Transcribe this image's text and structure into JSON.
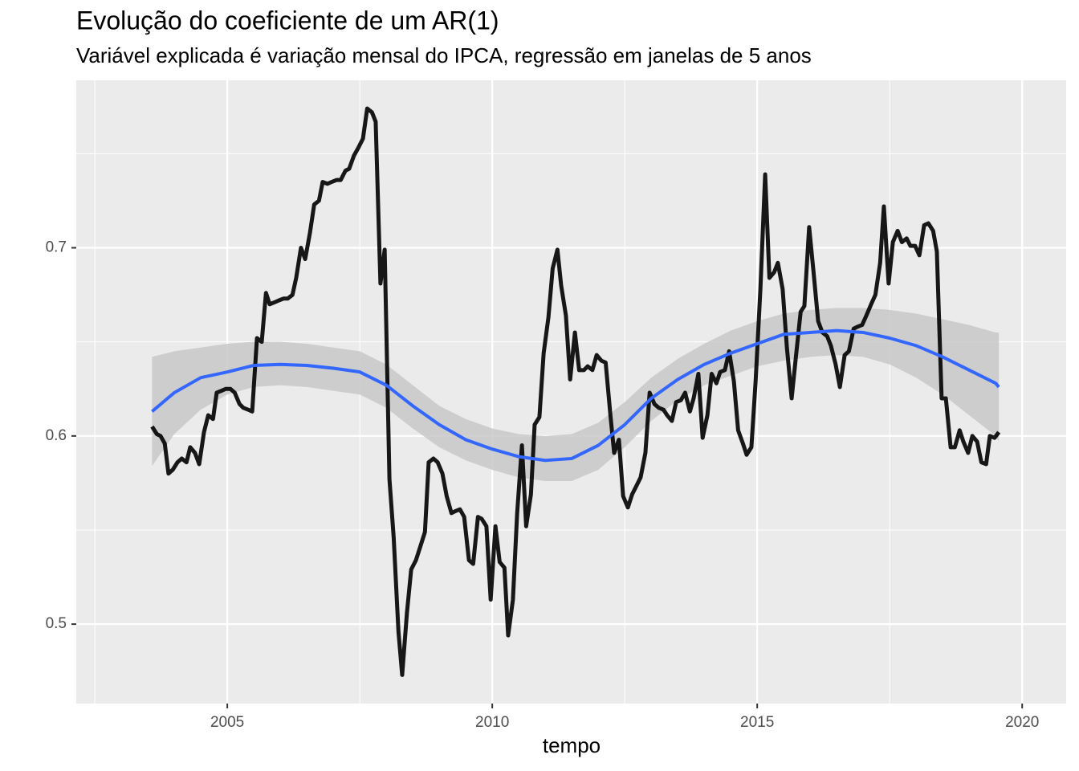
{
  "chart_data": {
    "type": "line",
    "title": "Evolução do coeficiente de um AR(1)",
    "subtitle": "Variável explicada é variação mensal do IPCA, regressão em janelas de 5 anos",
    "x_label": "tempo",
    "xlim": [
      2002.15,
      2020.83
    ],
    "ylim": [
      0.4578,
      0.789
    ],
    "xticks": [
      2005,
      2010,
      2015,
      2020
    ],
    "yticks": [
      0.5,
      0.6,
      0.7
    ],
    "xminor": [
      2002.5,
      2007.5,
      2012.5,
      2017.5
    ],
    "yminor": [
      0.55,
      0.65,
      0.75
    ],
    "grid": true,
    "panel_color": "#ebebeb",
    "series": [
      {
        "color": "#000000",
        "x": [
          2003.58,
          2003.67,
          2003.74,
          2003.82,
          2003.89,
          2003.97,
          2004.06,
          2004.14,
          2004.23,
          2004.3,
          2004.39,
          2004.47,
          2004.56,
          2004.64,
          2004.73,
          2004.8,
          2004.89,
          2004.97,
          2005.06,
          2005.14,
          2005.23,
          2005.3,
          2005.39,
          2005.47,
          2005.56,
          2005.65,
          2005.73,
          2005.8,
          2005.89,
          2005.97,
          2006.06,
          2006.14,
          2006.23,
          2006.3,
          2006.39,
          2006.47,
          2006.56,
          2006.64,
          2006.73,
          2006.8,
          2006.89,
          2006.97,
          2007.06,
          2007.14,
          2007.23,
          2007.3,
          2007.39,
          2007.47,
          2007.56,
          2007.64,
          2007.73,
          2007.8,
          2007.89,
          2007.97,
          2008.06,
          2008.14,
          2008.23,
          2008.3,
          2008.39,
          2008.47,
          2008.56,
          2008.64,
          2008.73,
          2008.8,
          2008.89,
          2008.97,
          2009.06,
          2009.14,
          2009.23,
          2009.3,
          2009.39,
          2009.47,
          2009.56,
          2009.64,
          2009.73,
          2009.8,
          2009.89,
          2009.97,
          2010.06,
          2010.14,
          2010.23,
          2010.3,
          2010.39,
          2010.47,
          2010.56,
          2010.64,
          2010.73,
          2010.8,
          2010.89,
          2010.97,
          2011.06,
          2011.14,
          2011.23,
          2011.3,
          2011.39,
          2011.47,
          2011.56,
          2011.64,
          2011.73,
          2011.8,
          2011.89,
          2011.97,
          2012.06,
          2012.14,
          2012.23,
          2012.3,
          2012.39,
          2012.47,
          2012.56,
          2012.64,
          2012.73,
          2012.8,
          2012.89,
          2012.97,
          2013.06,
          2013.14,
          2013.23,
          2013.3,
          2013.39,
          2013.47,
          2013.56,
          2013.64,
          2013.73,
          2013.8,
          2013.89,
          2013.97,
          2014.06,
          2014.14,
          2014.23,
          2014.3,
          2014.39,
          2014.47,
          2014.56,
          2014.64,
          2014.73,
          2014.8,
          2014.89,
          2014.97,
          2015.06,
          2015.15,
          2015.23,
          2015.32,
          2015.39,
          2015.48,
          2015.56,
          2015.65,
          2015.73,
          2015.82,
          2015.89,
          2015.98,
          2016.06,
          2016.15,
          2016.23,
          2016.32,
          2016.39,
          2016.48,
          2016.56,
          2016.65,
          2016.73,
          2016.82,
          2016.89,
          2016.98,
          2017.06,
          2017.15,
          2017.23,
          2017.32,
          2017.39,
          2017.48,
          2017.56,
          2017.65,
          2017.73,
          2017.82,
          2017.89,
          2017.98,
          2018.06,
          2018.15,
          2018.23,
          2018.32,
          2018.39,
          2018.48,
          2018.56,
          2018.65,
          2018.73,
          2018.82,
          2018.89,
          2018.98,
          2019.06,
          2019.15,
          2019.23,
          2019.32,
          2019.39,
          2019.48,
          2019.56
        ],
        "values": [
          0.605,
          0.601,
          0.6,
          0.596,
          0.58,
          0.582,
          0.586,
          0.588,
          0.586,
          0.594,
          0.591,
          0.585,
          0.602,
          0.611,
          0.609,
          0.623,
          0.624,
          0.625,
          0.625,
          0.623,
          0.617,
          0.615,
          0.614,
          0.613,
          0.652,
          0.65,
          0.676,
          0.67,
          0.671,
          0.672,
          0.673,
          0.673,
          0.675,
          0.684,
          0.7,
          0.694,
          0.708,
          0.723,
          0.725,
          0.735,
          0.734,
          0.735,
          0.736,
          0.736,
          0.741,
          0.742,
          0.749,
          0.753,
          0.758,
          0.774,
          0.772,
          0.767,
          0.681,
          0.699,
          0.577,
          0.546,
          0.496,
          0.473,
          0.506,
          0.529,
          0.534,
          0.541,
          0.549,
          0.586,
          0.588,
          0.586,
          0.58,
          0.568,
          0.559,
          0.56,
          0.561,
          0.557,
          0.534,
          0.532,
          0.557,
          0.556,
          0.552,
          0.513,
          0.552,
          0.533,
          0.53,
          0.494,
          0.513,
          0.559,
          0.595,
          0.552,
          0.569,
          0.606,
          0.61,
          0.644,
          0.663,
          0.689,
          0.699,
          0.68,
          0.664,
          0.63,
          0.655,
          0.635,
          0.635,
          0.637,
          0.635,
          0.643,
          0.64,
          0.639,
          0.611,
          0.591,
          0.598,
          0.568,
          0.562,
          0.569,
          0.574,
          0.578,
          0.591,
          0.623,
          0.617,
          0.615,
          0.614,
          0.611,
          0.608,
          0.618,
          0.619,
          0.623,
          0.613,
          0.62,
          0.633,
          0.599,
          0.611,
          0.633,
          0.628,
          0.634,
          0.635,
          0.645,
          0.629,
          0.603,
          0.596,
          0.59,
          0.594,
          0.629,
          0.678,
          0.739,
          0.684,
          0.687,
          0.692,
          0.678,
          0.647,
          0.62,
          0.642,
          0.666,
          0.669,
          0.711,
          0.688,
          0.661,
          0.655,
          0.653,
          0.648,
          0.638,
          0.626,
          0.643,
          0.645,
          0.657,
          0.658,
          0.659,
          0.664,
          0.67,
          0.675,
          0.692,
          0.722,
          0.681,
          0.703,
          0.709,
          0.703,
          0.705,
          0.701,
          0.701,
          0.696,
          0.712,
          0.713,
          0.709,
          0.698,
          0.62,
          0.62,
          0.594,
          0.594,
          0.603,
          0.597,
          0.591,
          0.6,
          0.597,
          0.586,
          0.585,
          0.6,
          0.599,
          0.602
        ]
      },
      {
        "color": "#3366ff",
        "band_color": "#c8c8c8",
        "x": [
          2003.58,
          2004,
          2004.5,
          2005,
          2005.5,
          2006,
          2006.5,
          2007,
          2007.5,
          2008,
          2008.5,
          2009,
          2009.5,
          2010,
          2010.5,
          2011,
          2011.5,
          2012,
          2012.5,
          2013,
          2013.5,
          2014,
          2014.5,
          2015,
          2015.5,
          2016,
          2016.5,
          2017,
          2017.5,
          2018,
          2018.5,
          2019,
          2019.5,
          2019.56
        ],
        "values": [
          0.613,
          0.623,
          0.631,
          0.634,
          0.6375,
          0.638,
          0.6375,
          0.636,
          0.634,
          0.627,
          0.616,
          0.606,
          0.598,
          0.593,
          0.589,
          0.587,
          0.588,
          0.595,
          0.606,
          0.62,
          0.63,
          0.638,
          0.644,
          0.649,
          0.654,
          0.655,
          0.656,
          0.655,
          0.652,
          0.648,
          0.642,
          0.635,
          0.628,
          0.626
        ],
        "upper": [
          0.642,
          0.645,
          0.647,
          0.649,
          0.65,
          0.65,
          0.649,
          0.647,
          0.645,
          0.638,
          0.627,
          0.616,
          0.609,
          0.604,
          0.601,
          0.6,
          0.601,
          0.607,
          0.618,
          0.631,
          0.641,
          0.649,
          0.656,
          0.661,
          0.665,
          0.667,
          0.668,
          0.668,
          0.667,
          0.665,
          0.662,
          0.659,
          0.655,
          0.655
        ],
        "lower": [
          0.584,
          0.601,
          0.614,
          0.622,
          0.626,
          0.627,
          0.626,
          0.624,
          0.622,
          0.615,
          0.604,
          0.594,
          0.587,
          0.582,
          0.578,
          0.576,
          0.576,
          0.582,
          0.594,
          0.608,
          0.619,
          0.627,
          0.632,
          0.637,
          0.64,
          0.642,
          0.643,
          0.642,
          0.638,
          0.631,
          0.622,
          0.611,
          0.6,
          0.597
        ]
      }
    ]
  }
}
